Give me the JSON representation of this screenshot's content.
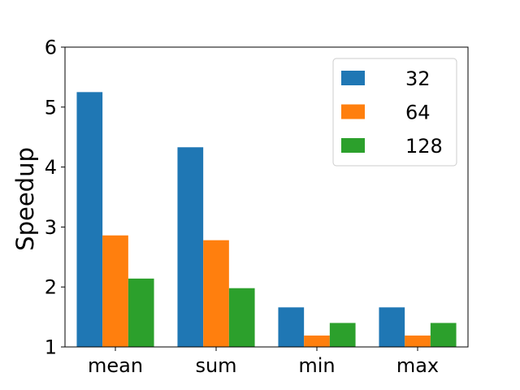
{
  "chart_data": {
    "type": "bar",
    "title": "",
    "xlabel": "",
    "ylabel": "Speedup",
    "ylim": [
      1,
      6
    ],
    "yticks": [
      "1",
      "2",
      "3",
      "4",
      "5",
      "6"
    ],
    "categories": [
      "mean",
      "sum",
      "min",
      "max"
    ],
    "series": [
      {
        "name": "32",
        "color": "#1f77b4",
        "values": [
          5.25,
          4.33,
          1.66,
          1.66
        ]
      },
      {
        "name": "64",
        "color": "#ff7f0e",
        "values": [
          2.86,
          2.78,
          1.19,
          1.19
        ]
      },
      {
        "name": "128",
        "color": "#2ca02c",
        "values": [
          2.14,
          1.98,
          1.4,
          1.4
        ]
      }
    ],
    "legend_position": "top-right",
    "grid": false
  }
}
